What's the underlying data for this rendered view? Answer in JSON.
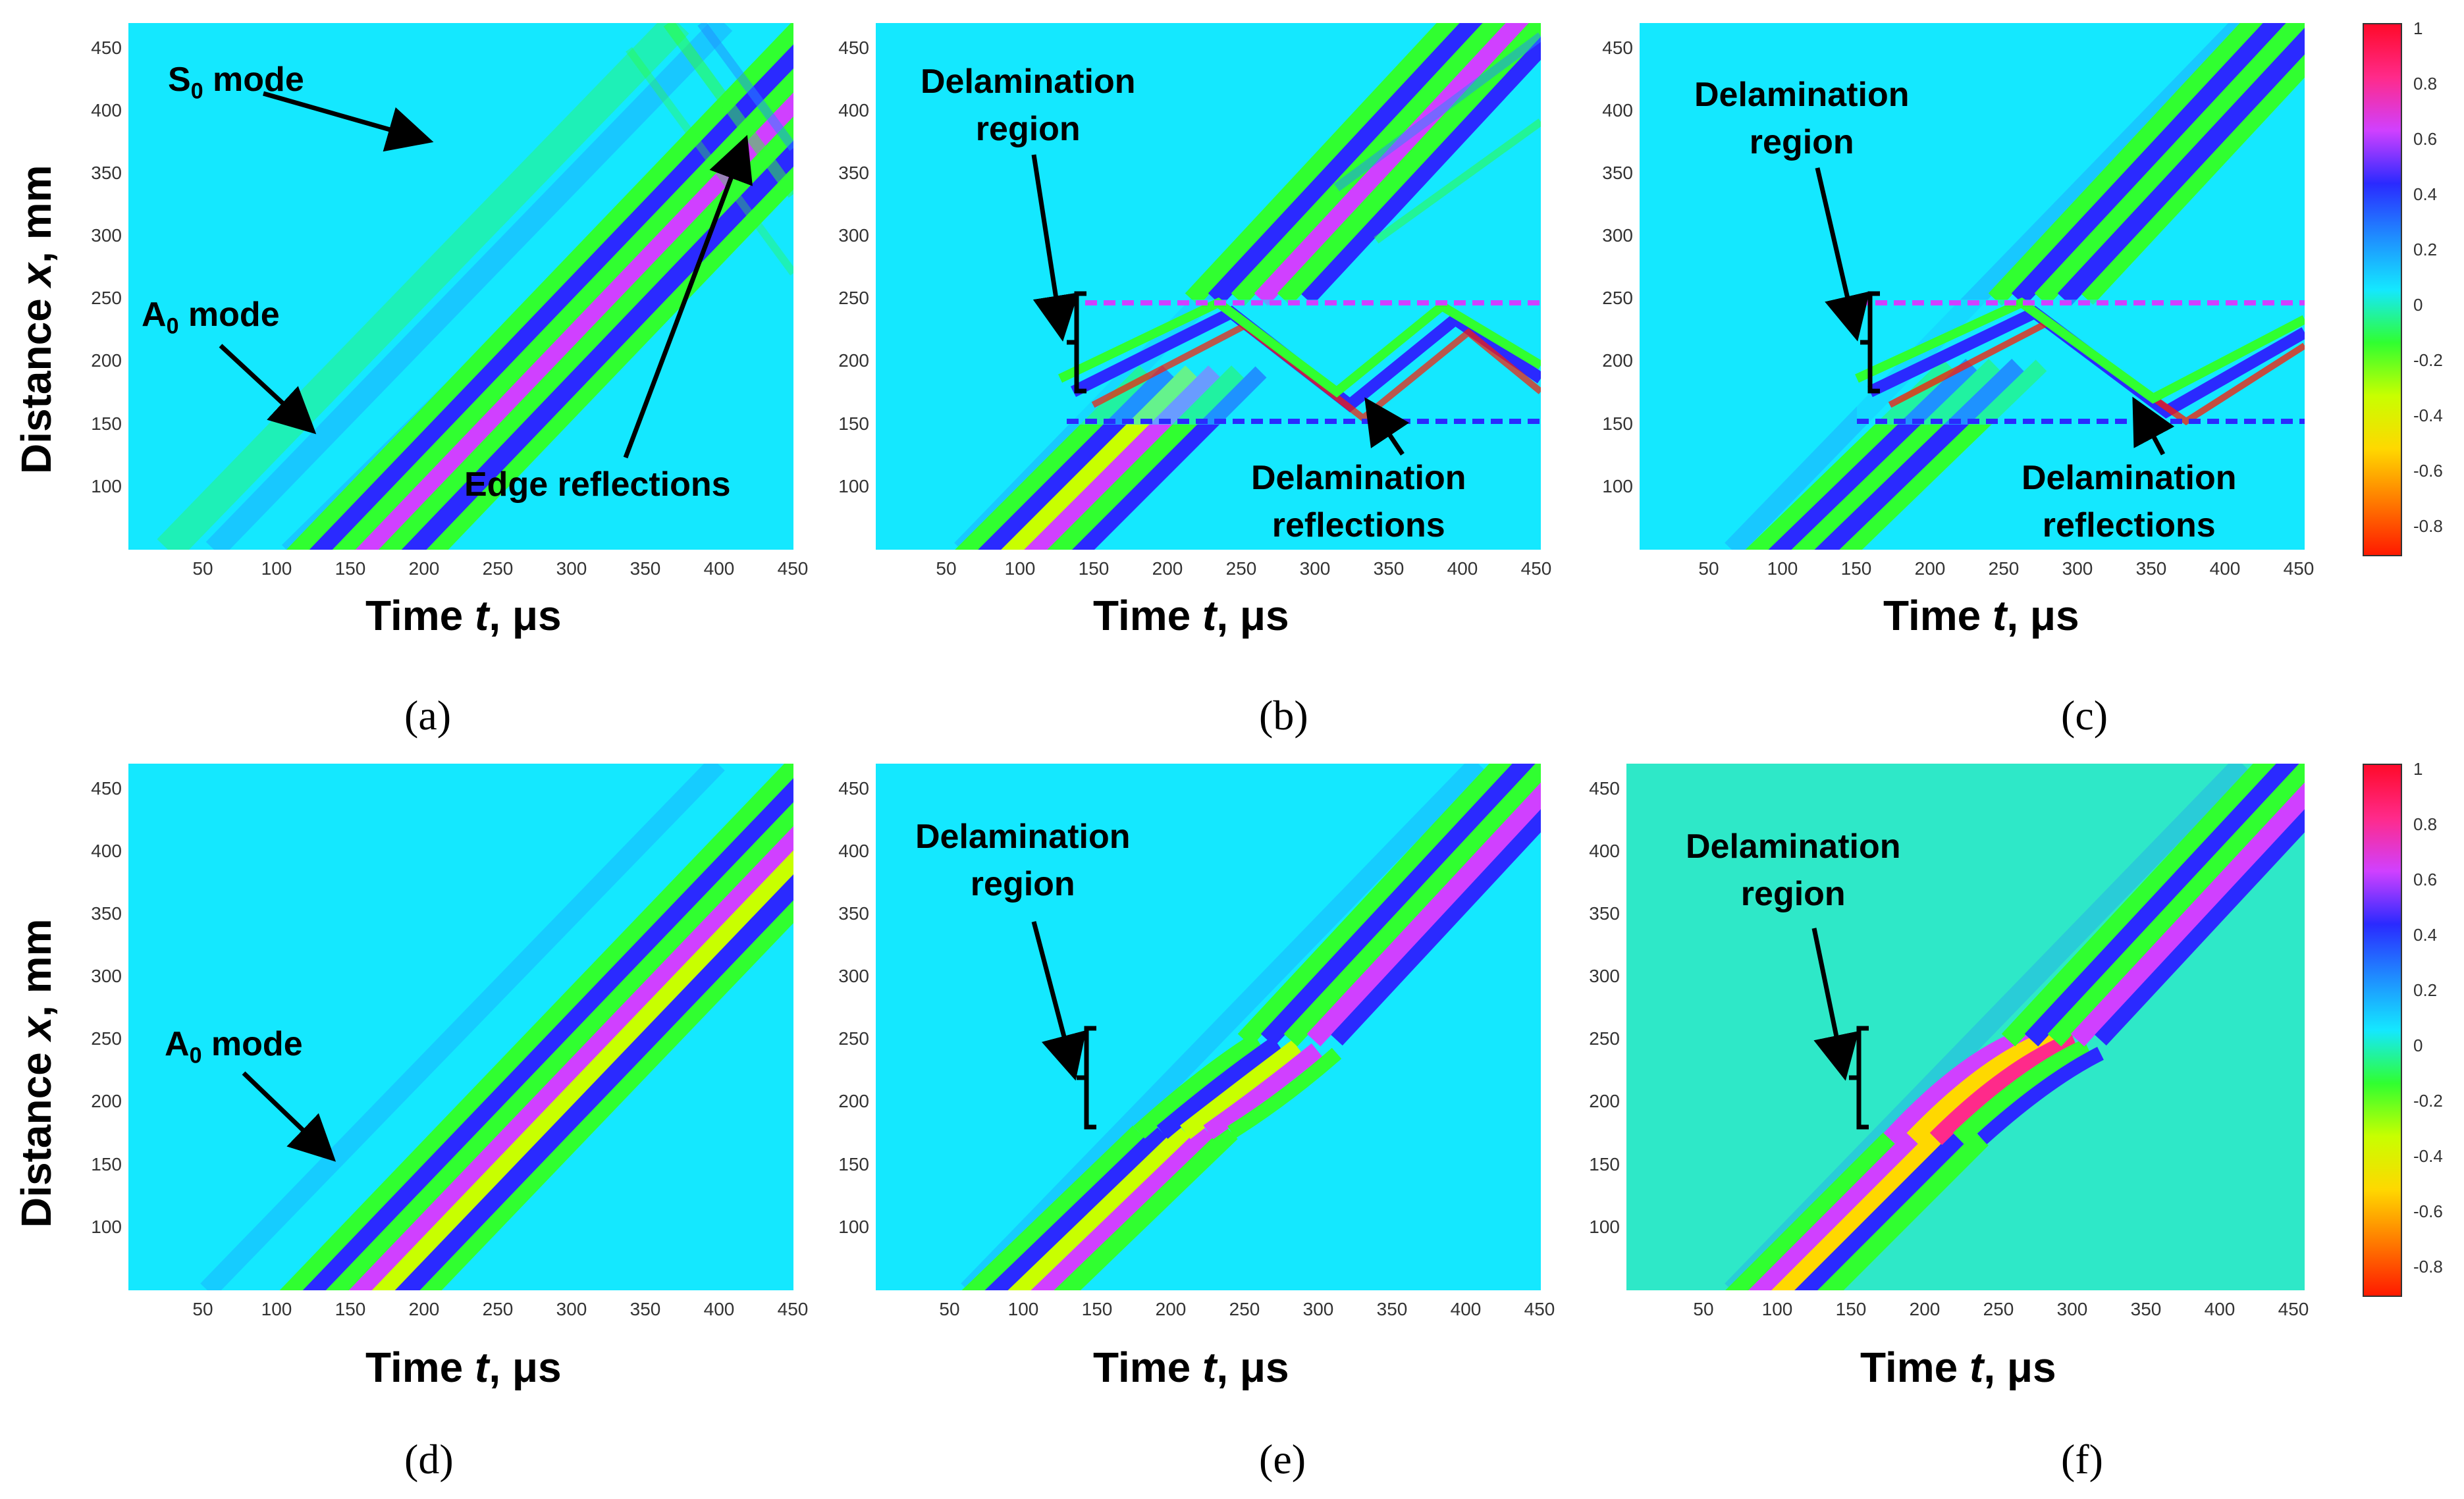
{
  "axis": {
    "xlabel_pre": "Time ",
    "xlabel_var": "t",
    "xlabel_post": ", μs",
    "ylabel_pre": "Distance ",
    "ylabel_var": "x",
    "ylabel_post": ", mm",
    "xticks": [
      "50",
      "100",
      "150",
      "200",
      "250",
      "300",
      "350",
      "400",
      "450"
    ],
    "yticks": [
      "100",
      "150",
      "200",
      "250",
      "300",
      "350",
      "400",
      "450"
    ]
  },
  "colorbar": {
    "ticks": [
      "1",
      "0.8",
      "0.6",
      "0.4",
      "0.2",
      "0",
      "-0.2",
      "-0.4",
      "-0.6",
      "-0.8"
    ],
    "colors": [
      "#ff0a2a",
      "#ff2a8a",
      "#d040ff",
      "#2a2aff",
      "#1f8cff",
      "#14e8ff",
      "#30ff30",
      "#c8ff00",
      "#ffd800",
      "#ff7a00",
      "#ff1a00"
    ]
  },
  "panels": [
    {
      "caption": "(a)",
      "annotations": {
        "s0": "S",
        "s0_sub": "0",
        "s0_post": " mode",
        "a0": "A",
        "a0_sub": "0",
        "a0_post": " mode",
        "edge": "Edge reflections"
      }
    },
    {
      "caption": "(b)",
      "annotations": {
        "region_l1": "Delamination",
        "region_l2": "region",
        "refl_l1": "Delamination",
        "refl_l2": "reflections"
      }
    },
    {
      "caption": "(c)",
      "annotations": {
        "region_l1": "Delamination",
        "region_l2": "region",
        "refl_l1": "Delamination",
        "refl_l2": "reflections"
      }
    },
    {
      "caption": "(d)",
      "annotations": {
        "a0": "A",
        "a0_sub": "0",
        "a0_post": " mode"
      }
    },
    {
      "caption": "(e)",
      "annotations": {
        "region_l1": "Delamination",
        "region_l2": "region"
      }
    },
    {
      "caption": "(f)",
      "annotations": {
        "region_l1": "Delamination",
        "region_l2": "region"
      }
    }
  ],
  "chart_data": [
    {
      "type": "heatmap",
      "title": "",
      "xlabel": "Time t, μs",
      "ylabel": "Distance x, mm",
      "xlim": [
        0,
        450
      ],
      "ylim": [
        50,
        470
      ],
      "colorscale_range": [
        -1,
        1
      ],
      "delamination": null,
      "reflections": "edge"
    },
    {
      "type": "heatmap",
      "title": "",
      "xlabel": "Time t, μs",
      "ylabel": "Distance x, mm",
      "xlim": [
        0,
        450
      ],
      "ylim": [
        50,
        470
      ],
      "colorscale_range": [
        -1,
        1
      ],
      "delamination": [
        175,
        250
      ],
      "reflections": "edge+delamination"
    },
    {
      "type": "heatmap",
      "title": "",
      "xlabel": "Time t, μs",
      "ylabel": "Distance x, mm",
      "xlim": [
        0,
        450
      ],
      "ylim": [
        50,
        470
      ],
      "colorscale_range": [
        -1,
        1
      ],
      "delamination": [
        175,
        250
      ],
      "reflections": "delamination"
    },
    {
      "type": "heatmap",
      "title": "",
      "xlabel": "Time t, μs",
      "ylabel": "Distance x, mm",
      "xlim": [
        0,
        450
      ],
      "ylim": [
        50,
        470
      ],
      "colorscale_range": [
        -1,
        1
      ],
      "delamination": null,
      "reflections": "none"
    },
    {
      "type": "heatmap",
      "title": "",
      "xlabel": "Time t, μs",
      "ylabel": "Distance x, mm",
      "xlim": [
        0,
        450
      ],
      "ylim": [
        50,
        470
      ],
      "colorscale_range": [
        -1,
        1
      ],
      "delamination": [
        185,
        250
      ],
      "reflections": "none"
    },
    {
      "type": "heatmap",
      "title": "",
      "xlabel": "Time t, μs",
      "ylabel": "Distance x, mm",
      "xlim": [
        0,
        450
      ],
      "ylim": [
        50,
        470
      ],
      "colorscale_range": [
        -1,
        1
      ],
      "delamination": [
        185,
        255
      ],
      "reflections": "none"
    }
  ]
}
